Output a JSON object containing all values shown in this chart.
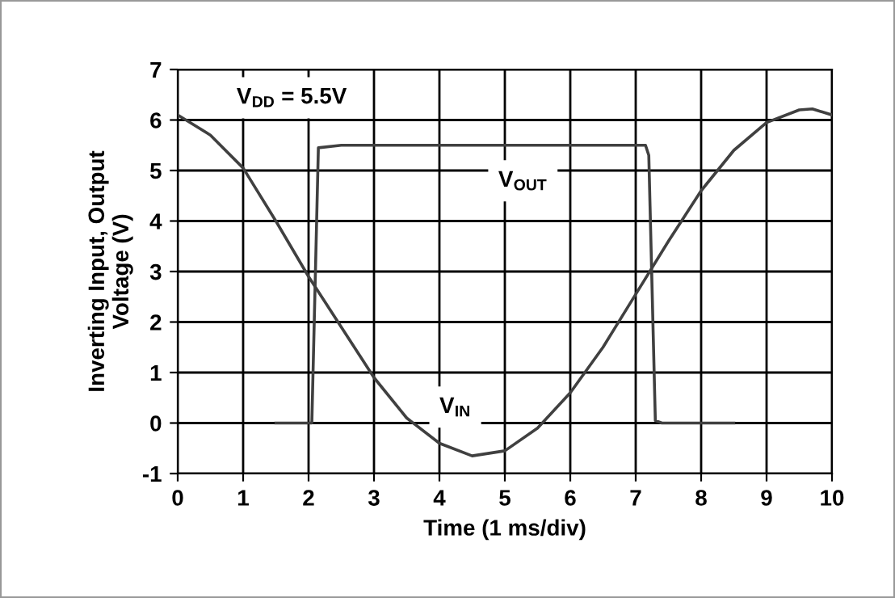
{
  "chart_data": {
    "type": "line",
    "xlabel": "Time (1 ms/div)",
    "ylabel": "Inverting Input, Output\nVoltage (V)",
    "annotations": [
      "V$_{DD}$ = 5.5V"
    ],
    "series": [
      {
        "name": "V$_{IN}$",
        "color": "#404040",
        "x": [
          0,
          0.5,
          1,
          1.5,
          2,
          2.5,
          3,
          3.5,
          4,
          4.5,
          5,
          5.5,
          6,
          6.5,
          7,
          7.5,
          8,
          8.5,
          9,
          9.5,
          9.7,
          10
        ],
        "values": [
          6.1,
          5.7,
          5.05,
          4.0,
          2.9,
          1.9,
          0.9,
          0.1,
          -0.4,
          -0.65,
          -0.55,
          -0.1,
          0.6,
          1.5,
          2.55,
          3.6,
          4.6,
          5.4,
          5.95,
          6.2,
          6.22,
          6.1
        ]
      },
      {
        "name": "V$_{OUT}$",
        "color": "#404040",
        "x": [
          1.5,
          2.05,
          2.15,
          2.5,
          7.15,
          7.2,
          7.3,
          7.4,
          8.5
        ],
        "values": [
          0,
          0,
          5.45,
          5.5,
          5.5,
          5.3,
          0.05,
          0,
          0
        ]
      }
    ],
    "xlim": [
      0,
      10
    ],
    "xticks": [
      0,
      1,
      2,
      3,
      4,
      5,
      6,
      7,
      8,
      9,
      10
    ],
    "ylim": [
      -1,
      7
    ],
    "yticks": [
      -1,
      0,
      1,
      2,
      3,
      4,
      5,
      6,
      7
    ],
    "grid": true,
    "legend": false,
    "line_style": "solid",
    "marker": "none"
  }
}
